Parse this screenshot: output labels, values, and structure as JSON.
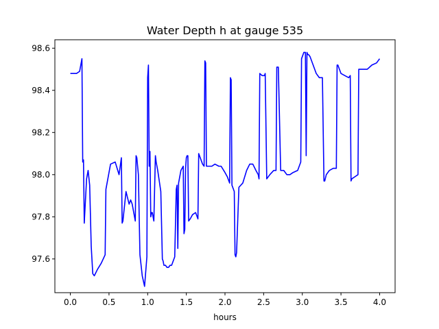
{
  "chart_data": {
    "type": "line",
    "title": "Water Depth h at gauge 535",
    "xlabel": "hours",
    "ylabel": "",
    "xlim": [
      -0.2,
      4.2
    ],
    "ylim": [
      97.44,
      98.64
    ],
    "x_ticks": [
      0.0,
      0.5,
      1.0,
      1.5,
      2.0,
      2.5,
      3.0,
      3.5,
      4.0
    ],
    "x_tick_labels": [
      "0.0",
      "0.5",
      "1.0",
      "1.5",
      "2.0",
      "2.5",
      "3.0",
      "3.5",
      "4.0"
    ],
    "y_ticks": [
      97.6,
      97.8,
      98.0,
      98.2,
      98.4,
      98.6
    ],
    "y_tick_labels": [
      "97.6",
      "97.8",
      "98.0",
      "98.2",
      "98.4",
      "98.6"
    ],
    "grid": false,
    "legend": "none",
    "series": [
      {
        "color": "#0000ff",
        "x": [
          0.0,
          0.08,
          0.12,
          0.15,
          0.16,
          0.17,
          0.18,
          0.21,
          0.23,
          0.25,
          0.27,
          0.29,
          0.31,
          0.35,
          0.4,
          0.45,
          0.46,
          0.52,
          0.58,
          0.63,
          0.66,
          0.67,
          0.68,
          0.72,
          0.76,
          0.78,
          0.8,
          0.84,
          0.85,
          0.86,
          0.88,
          0.9,
          0.93,
          0.96,
          0.99,
          1.0,
          1.01,
          1.02,
          1.03,
          1.04,
          1.05,
          1.06,
          1.07,
          1.08,
          1.1,
          1.11,
          1.13,
          1.17,
          1.19,
          1.2,
          1.21,
          1.23,
          1.25,
          1.27,
          1.29,
          1.31,
          1.35,
          1.37,
          1.38,
          1.39,
          1.4,
          1.41,
          1.43,
          1.46,
          1.47,
          1.48,
          1.49,
          1.5,
          1.51,
          1.52,
          1.53,
          1.55,
          1.58,
          1.62,
          1.65,
          1.66,
          1.68,
          1.71,
          1.73,
          1.74,
          1.75,
          1.76,
          1.78,
          1.83,
          1.87,
          1.92,
          1.95,
          2.0,
          2.03,
          2.05,
          2.06,
          2.07,
          2.08,
          2.09,
          2.12,
          2.13,
          2.14,
          2.15,
          2.18,
          2.23,
          2.28,
          2.32,
          2.36,
          2.4,
          2.43,
          2.44,
          2.45,
          2.48,
          2.51,
          2.52,
          2.54,
          2.58,
          2.63,
          2.66,
          2.67,
          2.68,
          2.69,
          2.72,
          2.76,
          2.8,
          2.84,
          2.88,
          2.94,
          2.98,
          2.99,
          3.02,
          3.04,
          3.05,
          3.06,
          3.07,
          3.08,
          3.1,
          3.14,
          3.18,
          3.22,
          3.26,
          3.28,
          3.29,
          3.31,
          3.35,
          3.4,
          3.44,
          3.45,
          3.46,
          3.47,
          3.5,
          3.55,
          3.6,
          3.62,
          3.63,
          3.64,
          3.68,
          3.72,
          3.73,
          3.74,
          3.78,
          3.84,
          3.9,
          3.96,
          4.0
        ],
        "y": [
          98.48,
          98.48,
          98.49,
          98.55,
          98.06,
          98.07,
          97.77,
          97.98,
          98.02,
          97.95,
          97.66,
          97.53,
          97.52,
          97.55,
          97.58,
          97.62,
          97.93,
          98.05,
          98.06,
          98.0,
          98.08,
          97.77,
          97.78,
          97.92,
          97.86,
          97.88,
          97.86,
          97.78,
          98.09,
          98.08,
          98.0,
          97.62,
          97.52,
          97.47,
          97.61,
          98.46,
          98.52,
          98.04,
          98.11,
          97.8,
          97.82,
          97.82,
          97.8,
          97.78,
          98.09,
          98.06,
          98.02,
          97.92,
          97.6,
          97.59,
          97.57,
          97.57,
          97.56,
          97.56,
          97.57,
          97.57,
          97.61,
          97.93,
          97.95,
          97.65,
          97.96,
          97.98,
          98.02,
          98.04,
          97.72,
          97.74,
          98.03,
          98.08,
          98.09,
          98.09,
          97.78,
          97.79,
          97.81,
          97.82,
          97.79,
          98.1,
          98.08,
          98.05,
          98.04,
          98.54,
          98.53,
          98.04,
          98.04,
          98.04,
          98.05,
          98.04,
          98.04,
          98.01,
          97.99,
          97.97,
          97.96,
          98.46,
          98.45,
          97.95,
          97.92,
          97.62,
          97.61,
          97.63,
          97.94,
          97.96,
          98.02,
          98.05,
          98.05,
          98.02,
          98.0,
          97.98,
          98.48,
          98.47,
          98.47,
          98.48,
          97.98,
          98.0,
          98.02,
          98.02,
          98.51,
          98.51,
          98.51,
          98.02,
          98.02,
          98.0,
          98.0,
          98.01,
          98.02,
          98.06,
          98.55,
          98.58,
          98.58,
          98.09,
          98.58,
          98.57,
          98.57,
          98.56,
          98.52,
          98.48,
          98.46,
          98.46,
          97.97,
          97.97,
          98.0,
          98.02,
          98.03,
          98.03,
          98.52,
          98.52,
          98.51,
          98.48,
          98.47,
          98.46,
          98.47,
          97.97,
          97.98,
          97.99,
          98.0,
          98.5,
          98.5,
          98.5,
          98.5,
          98.52,
          98.53,
          98.55
        ]
      }
    ]
  }
}
